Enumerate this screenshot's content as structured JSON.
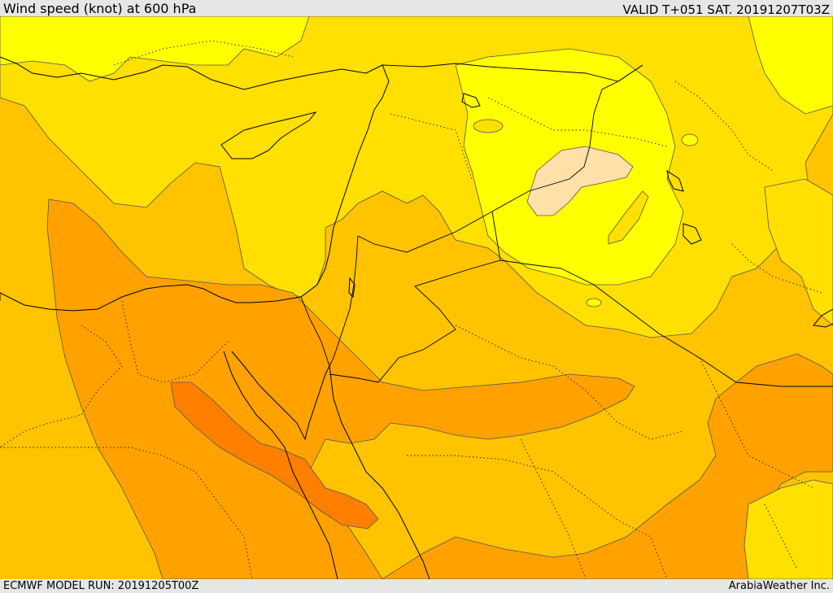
{
  "header": {
    "title": "Wind speed (knot) at 600 hPa",
    "valid": "VALID T+051 SAT. 20191207T03Z"
  },
  "footer": {
    "model_run": "ECMWF MODEL RUN: 20191205T00Z",
    "credit": "ArabiaWeather Inc."
  },
  "map": {
    "field": "wind speed at 600 hPa",
    "colors": {
      "lowest": "#ffe0a8",
      "low": "#ffff00",
      "moderate_low": "#ffe000",
      "moderate": "#ffc300",
      "moderate_high": "#ffa200",
      "high": "#ff8c10",
      "highest": "#ff7f0f"
    },
    "layers": [
      "wind-speed-fill",
      "contour-lines",
      "coastlines",
      "country-borders",
      "province-borders"
    ]
  }
}
